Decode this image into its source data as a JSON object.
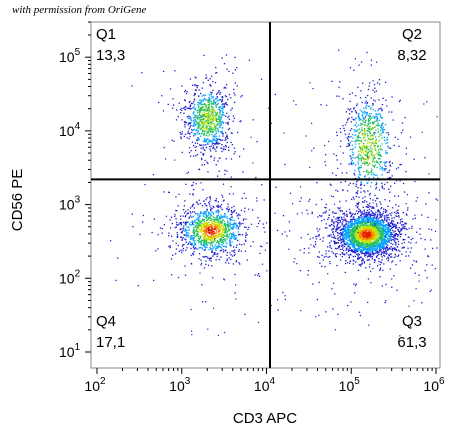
{
  "credit": "with permission from OriGene",
  "chart_data": {
    "type": "scatter",
    "subtype": "flow-cytometry-density-dot-plot",
    "xlabel": "CD3 APC",
    "ylabel": "CD56 PE",
    "x_scale": "log",
    "y_scale": "log",
    "xlim": [
      100,
      1000000
    ],
    "ylim": [
      10,
      300000
    ],
    "x_ticks": [
      {
        "base": "10",
        "exp": "2",
        "value": 100
      },
      {
        "base": "10",
        "exp": "3",
        "value": 1000
      },
      {
        "base": "10",
        "exp": "4",
        "value": 10000
      },
      {
        "base": "10",
        "exp": "5",
        "value": 100000
      },
      {
        "base": "10",
        "exp": "6",
        "value": 1000000
      }
    ],
    "y_ticks": [
      {
        "base": "10",
        "exp": "1",
        "value": 10
      },
      {
        "base": "10",
        "exp": "2",
        "value": 100
      },
      {
        "base": "10",
        "exp": "3",
        "value": 1000
      },
      {
        "base": "10",
        "exp": "4",
        "value": 10000
      },
      {
        "base": "10",
        "exp": "5",
        "value": 100000
      }
    ],
    "gates": {
      "x": 11000,
      "y": 2200
    },
    "quadrants": [
      {
        "name": "Q1",
        "value": "13,3",
        "position": "top-left"
      },
      {
        "name": "Q2",
        "value": "8,32",
        "position": "top-right"
      },
      {
        "name": "Q3",
        "value": "61,3",
        "position": "bottom-right"
      },
      {
        "name": "Q4",
        "value": "17,1",
        "position": "bottom-left"
      }
    ],
    "populations": [
      {
        "x": 2000,
        "y": 15000,
        "sx": 0.13,
        "sy": 0.22,
        "count": 900
      },
      {
        "x": 2200,
        "y": 450,
        "sx": 0.2,
        "sy": 0.17,
        "count": 1200
      },
      {
        "x": 150000,
        "y": 400,
        "sx": 0.18,
        "sy": 0.15,
        "count": 2600
      },
      {
        "x": 160000,
        "y": 6500,
        "sx": 0.14,
        "sy": 0.35,
        "count": 800
      }
    ],
    "grid": false,
    "legend": "none",
    "density_colors": [
      "#2020d0",
      "#00a0ff",
      "#20c060",
      "#c8e000",
      "#ff8000",
      "#e02000"
    ]
  }
}
